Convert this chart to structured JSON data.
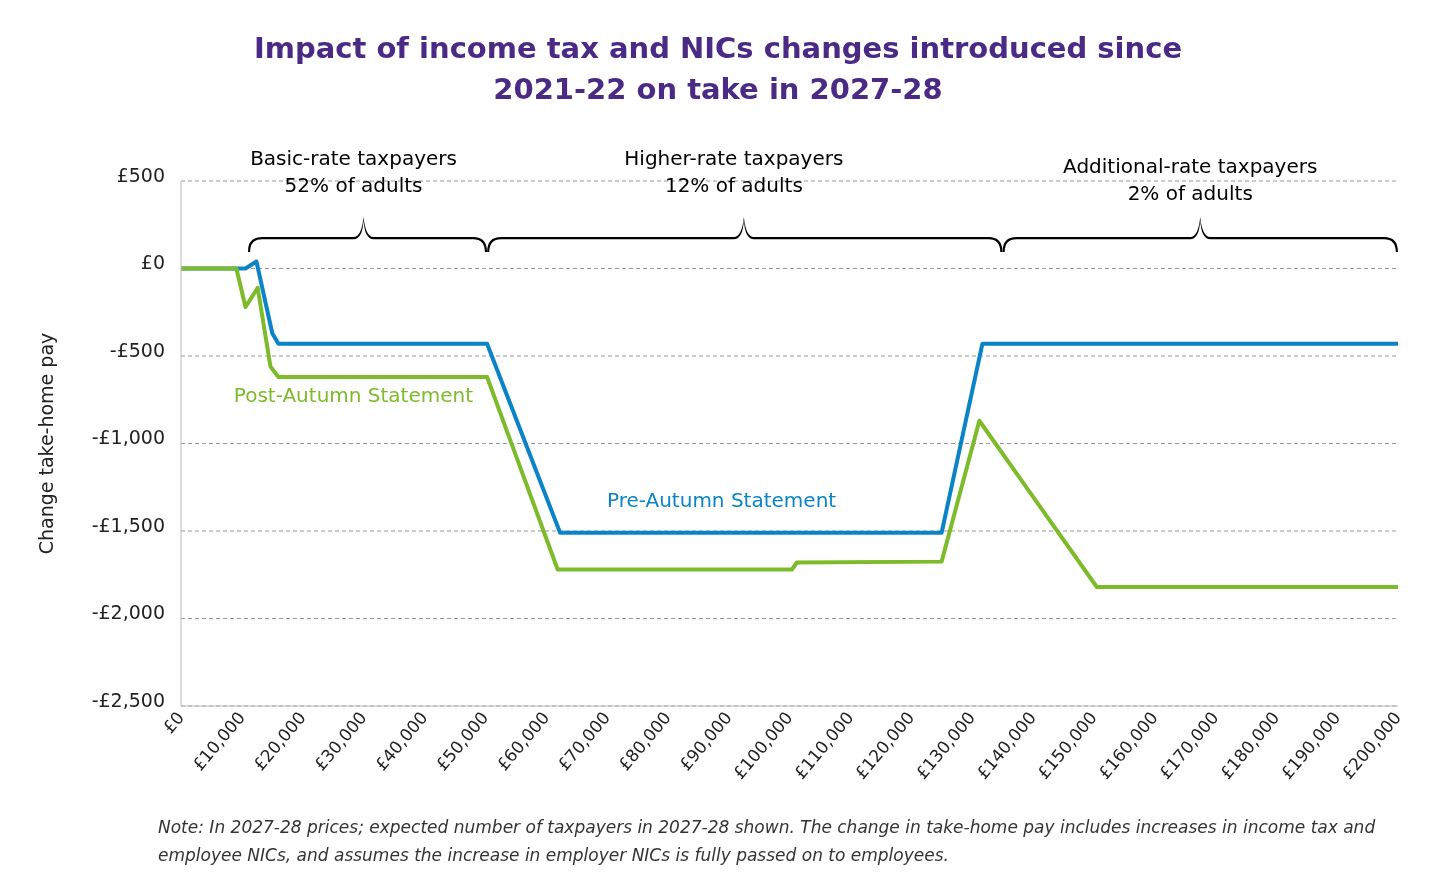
{
  "chart_data": {
    "type": "line",
    "title": "Impact of income tax and NICs changes introduced since 2021-22 on take in 2027-28",
    "ylabel": "Change take-home pay",
    "series": [
      {
        "name": "Pre-Autumn Statement",
        "color": "#0a84c6",
        "x": [
          0,
          10600,
          12400,
          15000,
          16000,
          50300,
          62300,
          125000,
          131700,
          200000
        ],
        "values": [
          0,
          0,
          40,
          -370,
          -430,
          -430,
          -1510,
          -1510,
          -430,
          -430
        ]
      },
      {
        "name": "Post-Autumn Statement",
        "color": "#7dbb2a",
        "x": [
          0,
          9100,
          10600,
          12600,
          14700,
          16000,
          50300,
          61900,
          100400,
          101200,
          125000,
          131200,
          150500,
          200000
        ],
        "values": [
          0,
          0,
          -220,
          -110,
          -560,
          -620,
          -620,
          -1720,
          -1720,
          -1680,
          -1675,
          -870,
          -1820,
          -1820
        ]
      }
    ],
    "xlim": [
      0,
      200000
    ],
    "xticks": [
      {
        "value": 0,
        "label": "£0"
      },
      {
        "value": 10000,
        "label": "£10,000"
      },
      {
        "value": 20000,
        "label": "£20,000"
      },
      {
        "value": 30000,
        "label": "£30,000"
      },
      {
        "value": 40000,
        "label": "£40,000"
      },
      {
        "value": 50000,
        "label": "£50,000"
      },
      {
        "value": 60000,
        "label": "£60,000"
      },
      {
        "value": 70000,
        "label": "£70,000"
      },
      {
        "value": 80000,
        "label": "£80,000"
      },
      {
        "value": 90000,
        "label": "£90,000"
      },
      {
        "value": 100000,
        "label": "£100,000"
      },
      {
        "value": 110000,
        "label": "£110,000"
      },
      {
        "value": 120000,
        "label": "£120,000"
      },
      {
        "value": 130000,
        "label": "£130,000"
      },
      {
        "value": 140000,
        "label": "£140,000"
      },
      {
        "value": 150000,
        "label": "£150,000"
      },
      {
        "value": 160000,
        "label": "£160,000"
      },
      {
        "value": 170000,
        "label": "£170,000"
      },
      {
        "value": 180000,
        "label": "£180,000"
      },
      {
        "value": 190000,
        "label": "£190,000"
      },
      {
        "value": 200000,
        "label": "£200,000"
      }
    ],
    "ylim": [
      -2500,
      500
    ],
    "yticks": [
      {
        "value": -2500,
        "label": "-£2,500"
      },
      {
        "value": -2000,
        "label": "-£2,000"
      },
      {
        "value": -1500,
        "label": "-£1,500"
      },
      {
        "value": -1000,
        "label": "-£1,000"
      },
      {
        "value": -500,
        "label": "-£500"
      },
      {
        "value": 0,
        "label": "£0"
      },
      {
        "value": 500,
        "label": "£500"
      }
    ],
    "grid": "y",
    "marker": "none",
    "line_style": "solid",
    "annotations": [
      "Basic-rate taxpayers\n52% of adults",
      "Higher-rate taxpayers\n12% of adults",
      "Additional-rate taxpayers\n2% of adults",
      "Note: In 2027-28 prices; expected number of taxpayers in 2027-28 shown. The change in take-home pay includes increases in income tax and employee NICs, and assumes the increase in employer NICs is fully passed on to employees."
    ]
  }
}
